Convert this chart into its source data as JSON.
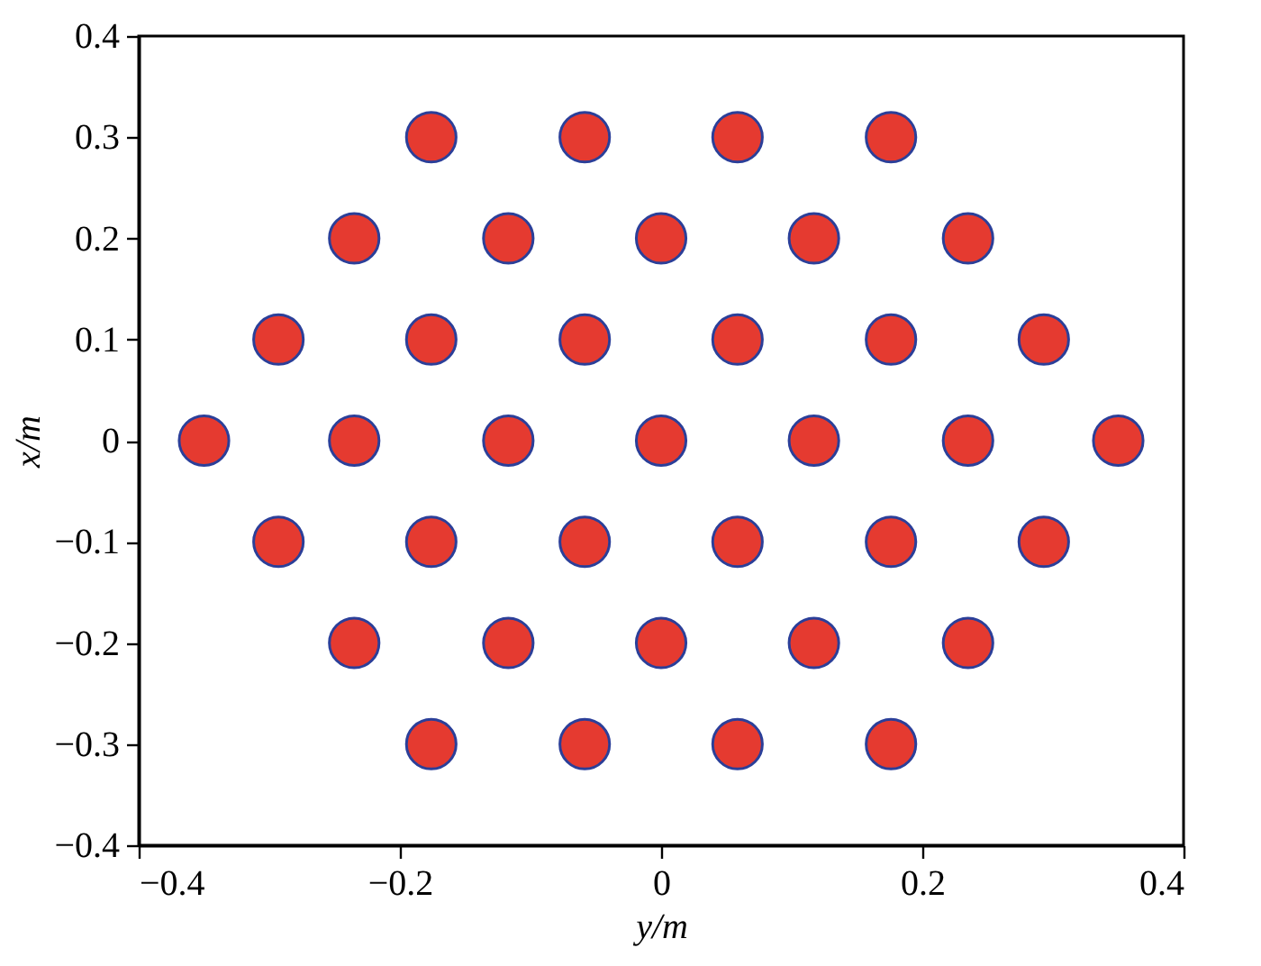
{
  "chart_data": {
    "type": "scatter",
    "xlabel": "y/m",
    "ylabel": "x/m",
    "x": [
      -0.176,
      -0.0585,
      0.0585,
      0.176,
      -0.235,
      -0.117,
      0,
      0.117,
      0.235,
      -0.293,
      -0.176,
      -0.0585,
      0.0585,
      0.176,
      0.293,
      -0.35,
      -0.235,
      -0.117,
      0,
      0.117,
      0.235,
      0.35,
      -0.293,
      -0.176,
      -0.0585,
      0.0585,
      0.176,
      0.293,
      -0.235,
      -0.117,
      0,
      0.117,
      0.235,
      -0.176,
      -0.0585,
      0.0585,
      0.176
    ],
    "series": [
      {
        "color": "#e53a30",
        "values": [
          0.3,
          0.3,
          0.3,
          0.3,
          0.2,
          0.2,
          0.2,
          0.2,
          0.2,
          0.1,
          0.1,
          0.1,
          0.1,
          0.1,
          0.1,
          0,
          0,
          0,
          0,
          0,
          0,
          0,
          -0.1,
          -0.1,
          -0.1,
          -0.1,
          -0.1,
          -0.1,
          -0.2,
          -0.2,
          -0.2,
          -0.2,
          -0.2,
          -0.3,
          -0.3,
          -0.3,
          -0.3
        ]
      }
    ],
    "marker": "circle",
    "xlim": [
      -0.4,
      0.4
    ],
    "xticks": [
      -0.4,
      -0.2,
      0,
      0.2,
      0.4
    ],
    "ylim": [
      -0.4,
      0.4
    ],
    "yticks": [
      -0.4,
      -0.3,
      -0.2,
      -0.1,
      0,
      0.1,
      0.2,
      0.3,
      0.4
    ],
    "grid": false
  }
}
